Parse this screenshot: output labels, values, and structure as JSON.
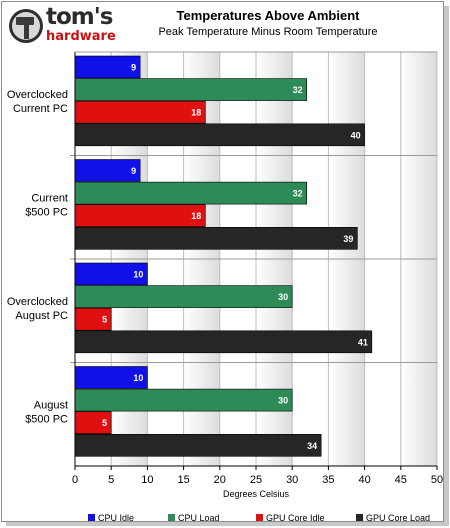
{
  "brand": {
    "word1": "tom's",
    "word2": "hardware"
  },
  "chart_data": {
    "type": "bar",
    "orientation": "horizontal",
    "title": "Temperatures Above Ambient",
    "subtitle": "Peak Temperature Minus Room Temperature",
    "xlabel": "Degrees Celsius",
    "ylabel": "",
    "xlim": [
      0,
      50
    ],
    "xticks": [
      "0",
      "5",
      "10",
      "15",
      "20",
      "25",
      "30",
      "35",
      "40",
      "45",
      "50"
    ],
    "categories": [
      [
        "Overclocked",
        "Current PC"
      ],
      [
        "Current",
        "$500 PC"
      ],
      [
        "Overclocked",
        "August PC"
      ],
      [
        "August",
        "$500 PC"
      ]
    ],
    "series": [
      {
        "name": "CPU Idle",
        "color": "#1010e8",
        "values": [
          9,
          9,
          10,
          10
        ]
      },
      {
        "name": "CPU Load",
        "color": "#2e8b57",
        "values": [
          32,
          32,
          30,
          30
        ]
      },
      {
        "name": "GPU Core Idle",
        "color": "#e01010",
        "values": [
          18,
          18,
          5,
          5
        ]
      },
      {
        "name": "GPU Core Load",
        "color": "#262626",
        "values": [
          40,
          39,
          41,
          34
        ]
      }
    ],
    "grid": true,
    "legend": "bottom"
  }
}
